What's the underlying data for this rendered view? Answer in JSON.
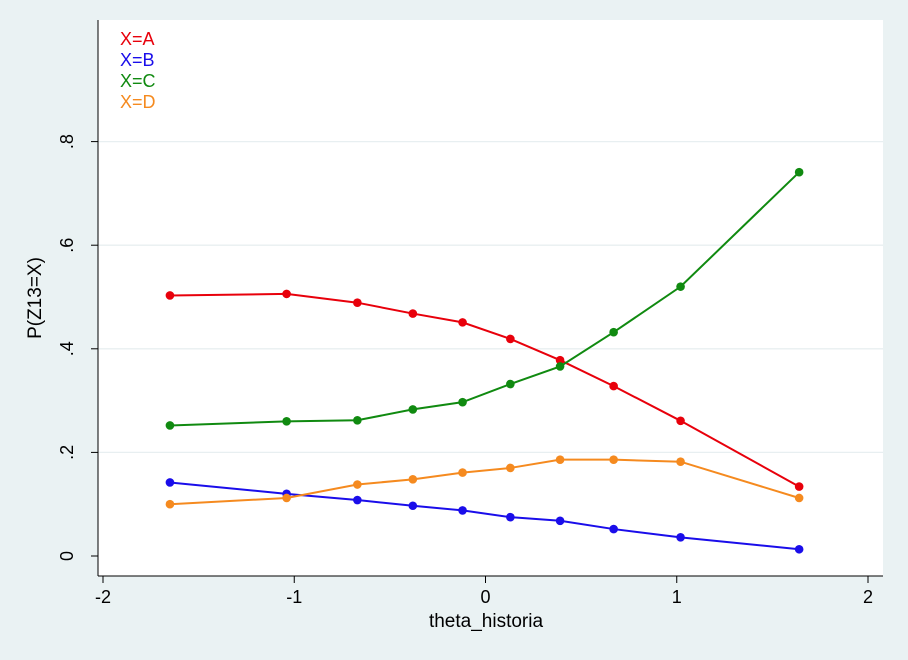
{
  "chart_data": {
    "type": "line",
    "xlabel": "theta_historia",
    "ylabel": "P(Z13=X)",
    "xlim": [
      -2,
      2
    ],
    "ylim": [
      0,
      1
    ],
    "x_ticks": [
      {
        "value": -2,
        "label": "-2"
      },
      {
        "value": -1,
        "label": "-1"
      },
      {
        "value": 0,
        "label": "0"
      },
      {
        "value": 1,
        "label": "1"
      },
      {
        "value": 2,
        "label": "2"
      }
    ],
    "y_ticks": [
      {
        "value": 0,
        "label": "0"
      },
      {
        "value": 0.2,
        "label": ".2"
      },
      {
        "value": 0.4,
        "label": ".4"
      },
      {
        "value": 0.6,
        "label": ".6"
      },
      {
        "value": 0.8,
        "label": ".8"
      }
    ],
    "grid": true,
    "legend_position": "top-left",
    "x": [
      -1.65,
      -1.04,
      -0.67,
      -0.38,
      -0.12,
      0.13,
      0.39,
      0.67,
      1.02,
      1.64
    ],
    "series": [
      {
        "name": "X=A",
        "color": "#e8000b",
        "values": [
          0.503,
          0.506,
          0.489,
          0.468,
          0.451,
          0.419,
          0.378,
          0.328,
          0.261,
          0.134
        ]
      },
      {
        "name": "X=B",
        "color": "#1a0dea",
        "values": [
          0.142,
          0.12,
          0.108,
          0.097,
          0.088,
          0.075,
          0.068,
          0.052,
          0.036,
          0.013
        ]
      },
      {
        "name": "X=C",
        "color": "#108a10",
        "values": [
          0.252,
          0.26,
          0.262,
          0.283,
          0.297,
          0.332,
          0.366,
          0.432,
          0.52,
          0.741
        ]
      },
      {
        "name": "X=D",
        "color": "#f58a1f",
        "values": [
          0.1,
          0.112,
          0.138,
          0.148,
          0.161,
          0.17,
          0.186,
          0.186,
          0.182,
          0.112
        ]
      }
    ]
  }
}
